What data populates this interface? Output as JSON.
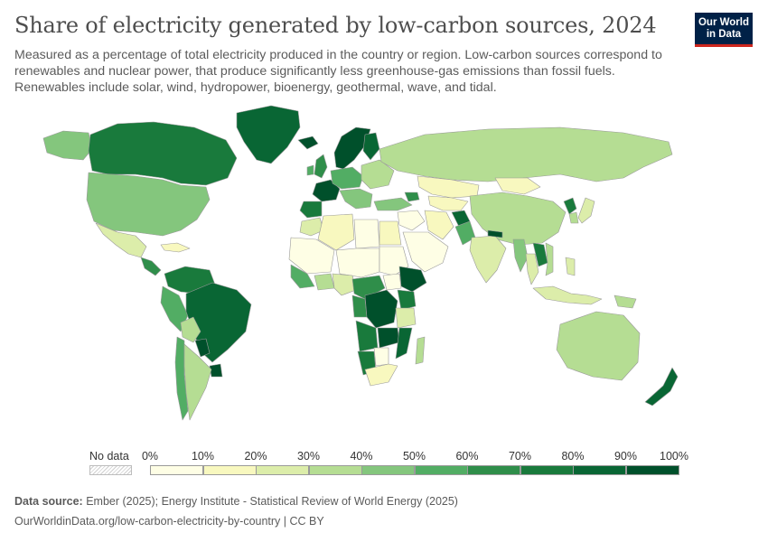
{
  "header": {
    "title": "Share of electricity generated by low-carbon sources, 2024",
    "subtitle": "Measured as a percentage of total electricity produced in the country or region. Low-carbon sources correspond to renewables and nuclear power, that produce significantly less greenhouse-gas emissions than fossil fuels. Renewables include solar, wind, hydropower, bioenergy, geothermal, wave, and tidal."
  },
  "logo": {
    "line1": "Our World",
    "line2": "in Data"
  },
  "legend": {
    "no_data_label": "No data",
    "ticks": [
      "0%",
      "10%",
      "20%",
      "30%",
      "40%",
      "50%",
      "60%",
      "70%",
      "80%",
      "90%",
      "100%"
    ],
    "colors": [
      "#fefee5",
      "#f8f8bf",
      "#dcedaa",
      "#b5dd93",
      "#84c67d",
      "#52ad64",
      "#2f8e4a",
      "#197a3c",
      "#096634",
      "#00502b"
    ]
  },
  "footer": {
    "source_label": "Data source:",
    "source": " Ember (2025); Energy Institute - Statistical Review of World Energy (2025)",
    "url": "OurWorldinData.org/low-carbon-electricity-by-country | CC BY"
  },
  "map": {
    "bins": {
      "greenland": 8,
      "canada": 7,
      "usa": 4,
      "alaska": 4,
      "mexico": 2,
      "central_america": 6,
      "caribbean_cuba": 1,
      "colombia_venezuela": 7,
      "ecuador_peru": 5,
      "brazil": 8,
      "bolivia": 3,
      "paraguay": 9,
      "chile": 5,
      "argentina": 3,
      "uruguay": 9,
      "iceland": 9,
      "uk": 6,
      "ireland": 5,
      "scandinavia": 9,
      "finland": 8,
      "france": 9,
      "iberia": 7,
      "central_europe": 5,
      "eastern_europe": 3,
      "italy_balkans": 4,
      "russia": 3,
      "turkey": 4,
      "caucasus": 6,
      "middle_east": 0,
      "iran": 1,
      "central_asia": 1,
      "kazakhstan": 1,
      "mongolia": 1,
      "pakistan": 5,
      "afghanistan": 8,
      "india": 2,
      "nepal": 9,
      "myanmar": 4,
      "laos_cambodia": 7,
      "vietnam": 3,
      "thailand": 2,
      "china": 3,
      "korea": 3,
      "japan": 2,
      "koreas_north": 7,
      "indonesia": 2,
      "philippines": 2,
      "png": 3,
      "australia": 3,
      "new_zealand": 8,
      "north_africa": 1,
      "morocco": 2,
      "west_sahel": 0,
      "niger_chad": 0,
      "nigeria": 2,
      "west_coast": 5,
      "ghana": 3,
      "sudan": 0,
      "south_sudan": 0,
      "ethiopia": 9,
      "east_africa": 7,
      "cameroon_car": 6,
      "drc": 9,
      "congo_gabon": 6,
      "angola": 7,
      "zambia": 9,
      "tanzania": 2,
      "mozambique": 8,
      "namibia": 7,
      "botswana": 0,
      "south_africa": 1,
      "madagascar": 3,
      "egypt": 1,
      "libya": 0,
      "arabia": 0
    }
  }
}
